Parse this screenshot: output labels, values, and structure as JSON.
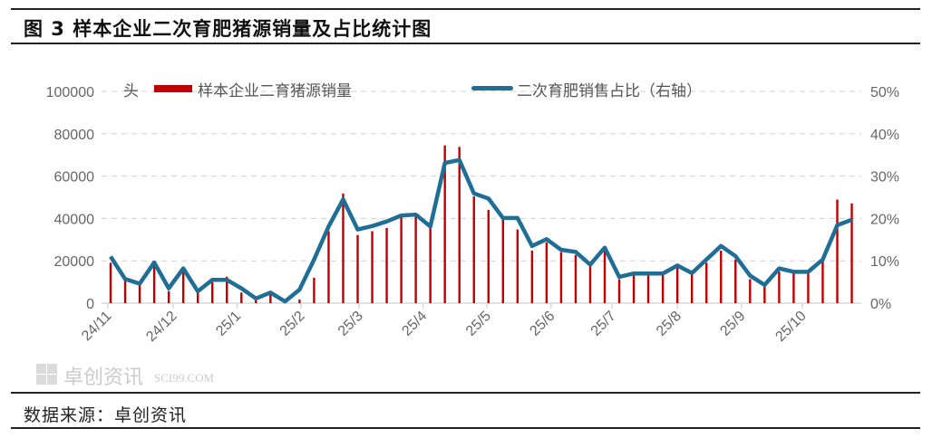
{
  "header": {
    "title": "图 3 样本企业二次育肥猪源销量及占比统计图"
  },
  "footer": {
    "source": "数据来源：卓创资讯"
  },
  "watermark": {
    "text": "卓创资讯",
    "subtext": "SCI99.COM"
  },
  "colors": {
    "bar": "#c00000",
    "line": "#1f6e96",
    "grid": "#d0d0d0",
    "axis": "#d9d9d9"
  },
  "chart_data": {
    "type": "bar+line",
    "left_unit_label": "头",
    "ylim_left": [
      0,
      100000
    ],
    "yticks_left": [
      "0",
      "20000",
      "40000",
      "60000",
      "80000",
      "100000"
    ],
    "ylim_right": [
      0,
      50
    ],
    "yticks_right": [
      "0%",
      "10%",
      "20%",
      "30%",
      "40%",
      "50%"
    ],
    "grid": "horizontal dashed",
    "legend_placement": "top",
    "x_ticks": [
      {
        "label": "24/11",
        "index": -0.2
      },
      {
        "label": "24/12",
        "index": 4.3
      },
      {
        "label": "25/1",
        "index": 8.7
      },
      {
        "label": "25/2",
        "index": 13.1
      },
      {
        "label": "25/3",
        "index": 17.1
      },
      {
        "label": "25/4",
        "index": 21.5
      },
      {
        "label": "25/5",
        "index": 25.9
      },
      {
        "label": "25/6",
        "index": 30.3
      },
      {
        "label": "25/7",
        "index": 34.5
      },
      {
        "label": "25/8",
        "index": 39.0
      },
      {
        "label": "25/9",
        "index": 43.4
      },
      {
        "label": "25/10",
        "index": 47.6
      }
    ],
    "series": [
      {
        "name": "样本企业二育猪源销量",
        "type": "bar",
        "axis": "left",
        "values": [
          19100,
          10600,
          8500,
          17700,
          5700,
          14900,
          5000,
          9900,
          12500,
          5000,
          1400,
          4500,
          0,
          1700,
          12000,
          34000,
          51800,
          32200,
          34000,
          35500,
          41100,
          41100,
          35500,
          74500,
          73800,
          50400,
          44000,
          39700,
          34800,
          24800,
          28700,
          24100,
          22700,
          17700,
          26200,
          11300,
          13500,
          13500,
          13500,
          17000,
          14200,
          19100,
          24800,
          20600,
          11300,
          7800,
          14900,
          14200,
          14200,
          19900,
          48900,
          47100
        ]
      },
      {
        "name": "二次育肥销售占比（右轴）",
        "type": "line",
        "axis": "right",
        "unit": "%",
        "values": [
          11.0,
          5.7,
          4.6,
          9.6,
          3.5,
          8.2,
          2.8,
          5.5,
          5.5,
          3.5,
          1.1,
          2.5,
          0.4,
          3.2,
          10.3,
          18.1,
          24.5,
          17.4,
          18.2,
          19.3,
          20.7,
          20.9,
          18.1,
          33.1,
          33.8,
          25.9,
          24.7,
          20.1,
          20.1,
          13.5,
          15.1,
          12.6,
          12.1,
          9.1,
          13.1,
          6.2,
          7.0,
          7.0,
          7.0,
          8.9,
          7.1,
          10.3,
          13.5,
          11.1,
          6.5,
          4.3,
          8.2,
          7.4,
          7.4,
          10.3,
          18.4,
          19.7
        ]
      }
    ]
  }
}
